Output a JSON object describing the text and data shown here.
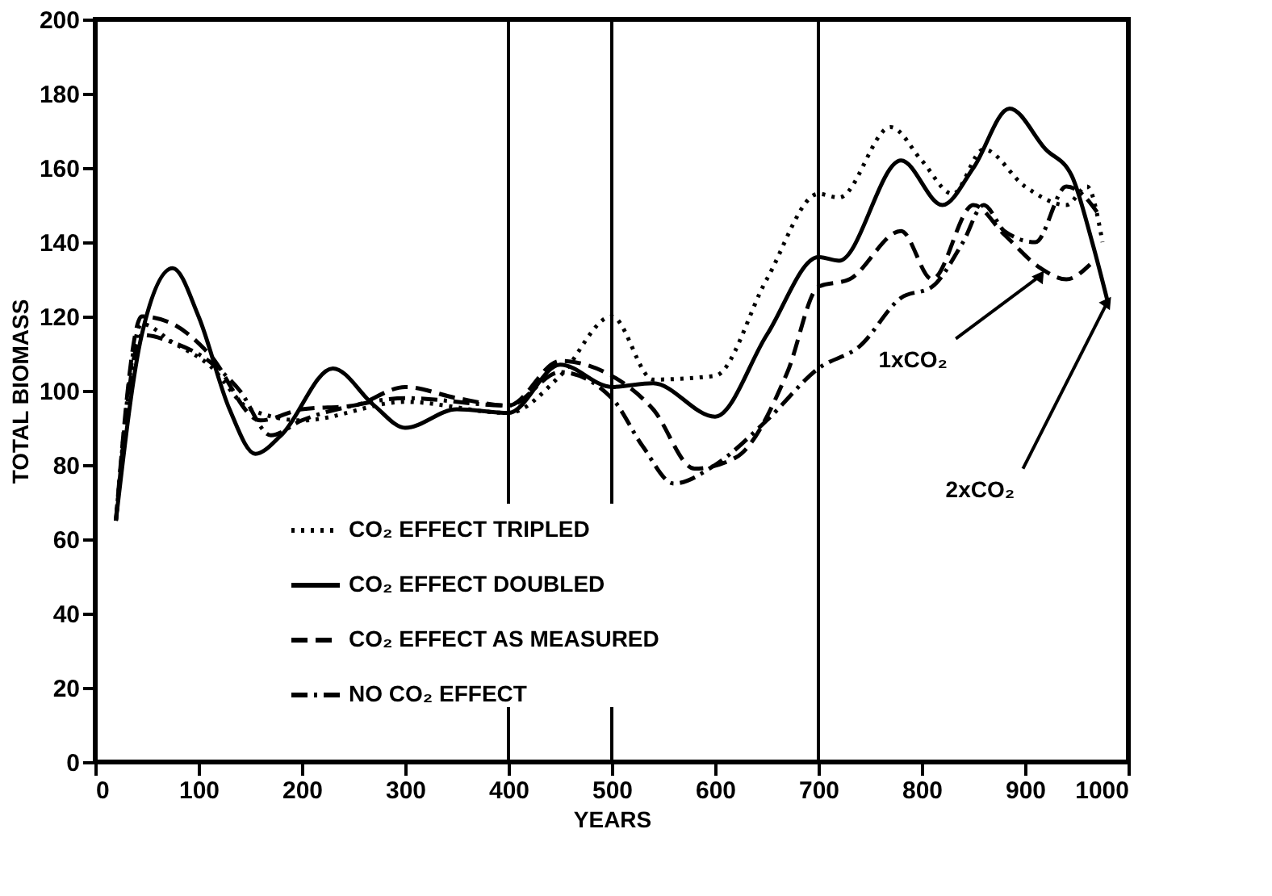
{
  "chart_data": {
    "type": "line",
    "xlabel": "YEARS",
    "ylabel": "TOTAL BIOMASS",
    "xlim": [
      0,
      1000
    ],
    "ylim": [
      0,
      200
    ],
    "xticks": [
      0,
      100,
      200,
      300,
      400,
      500,
      600,
      700,
      800,
      900,
      1000
    ],
    "yticks": [
      0,
      20,
      40,
      60,
      80,
      100,
      120,
      140,
      160,
      180,
      200
    ],
    "grid": false,
    "legend": "bottom left",
    "marker": "none",
    "series": [
      {
        "name": "CO₂ EFFECT TRIPLED",
        "color": "#000000",
        "line_style": "dotted",
        "x": [
          20,
          45,
          75,
          110,
          150,
          200,
          300,
          400,
          450,
          500,
          540,
          600,
          650,
          700,
          720,
          770,
          800,
          830,
          860,
          900,
          940,
          960,
          975
        ],
        "values": [
          65,
          118,
          113,
          107,
          95,
          92,
          97,
          94,
          104,
          120,
          103,
          104,
          130,
          153,
          152,
          171,
          162,
          153,
          165,
          155,
          150,
          155,
          140
        ]
      },
      {
        "name": "CO₂ EFFECT DOUBLED",
        "color": "#000000",
        "line_style": "solid",
        "x": [
          20,
          45,
          75,
          100,
          130,
          155,
          180,
          230,
          270,
          300,
          350,
          400,
          450,
          500,
          540,
          600,
          650,
          700,
          720,
          780,
          820,
          850,
          885,
          920,
          945,
          965,
          980
        ],
        "values": [
          65,
          115,
          133,
          120,
          95,
          83,
          88,
          106,
          96,
          90,
          95,
          94,
          107,
          101,
          102,
          93,
          115,
          136,
          135,
          162,
          150,
          160,
          176,
          165,
          158,
          140,
          124
        ]
      },
      {
        "name": "CO₂ EFFECT AS MEASURED",
        "color": "#000000",
        "line_style": "dashed",
        "x": [
          20,
          45,
          75,
          110,
          160,
          200,
          250,
          300,
          350,
          400,
          450,
          500,
          540,
          580,
          620,
          670,
          700,
          730,
          780,
          810,
          850,
          880,
          915,
          940,
          963
        ],
        "values": [
          65,
          120,
          118,
          110,
          92,
          95,
          96,
          101,
          98,
          96,
          108,
          104,
          95,
          79,
          82,
          105,
          128,
          130,
          143,
          130,
          150,
          142,
          133,
          130,
          134
        ]
      },
      {
        "name": "NO CO₂ EFFECT",
        "color": "#000000",
        "line_style": "dashdot",
        "x": [
          20,
          45,
          75,
          110,
          140,
          170,
          200,
          250,
          300,
          400,
          450,
          500,
          530,
          560,
          600,
          650,
          700,
          740,
          780,
          810,
          840,
          860,
          880,
          910,
          940,
          955,
          970
        ],
        "values": [
          65,
          115,
          113,
          108,
          100,
          88,
          92,
          96,
          98,
          96,
          105,
          98,
          85,
          75,
          80,
          92,
          106,
          112,
          125,
          128,
          140,
          150,
          143,
          140,
          155,
          153,
          148
        ]
      }
    ],
    "ref_lines": [
      {
        "axis": "x",
        "value": 400,
        "color": "#000000",
        "line_style": "solid"
      },
      {
        "axis": "x",
        "value": 500,
        "color": "#000000",
        "line_style": "solid"
      },
      {
        "axis": "x",
        "value": 700,
        "color": "#000000",
        "line_style": "solid"
      }
    ],
    "annotations": [
      {
        "text": "1xCO₂",
        "x": 915,
        "y": 131
      },
      {
        "text": "2xCO₂",
        "x": 980,
        "y": 124
      }
    ]
  }
}
